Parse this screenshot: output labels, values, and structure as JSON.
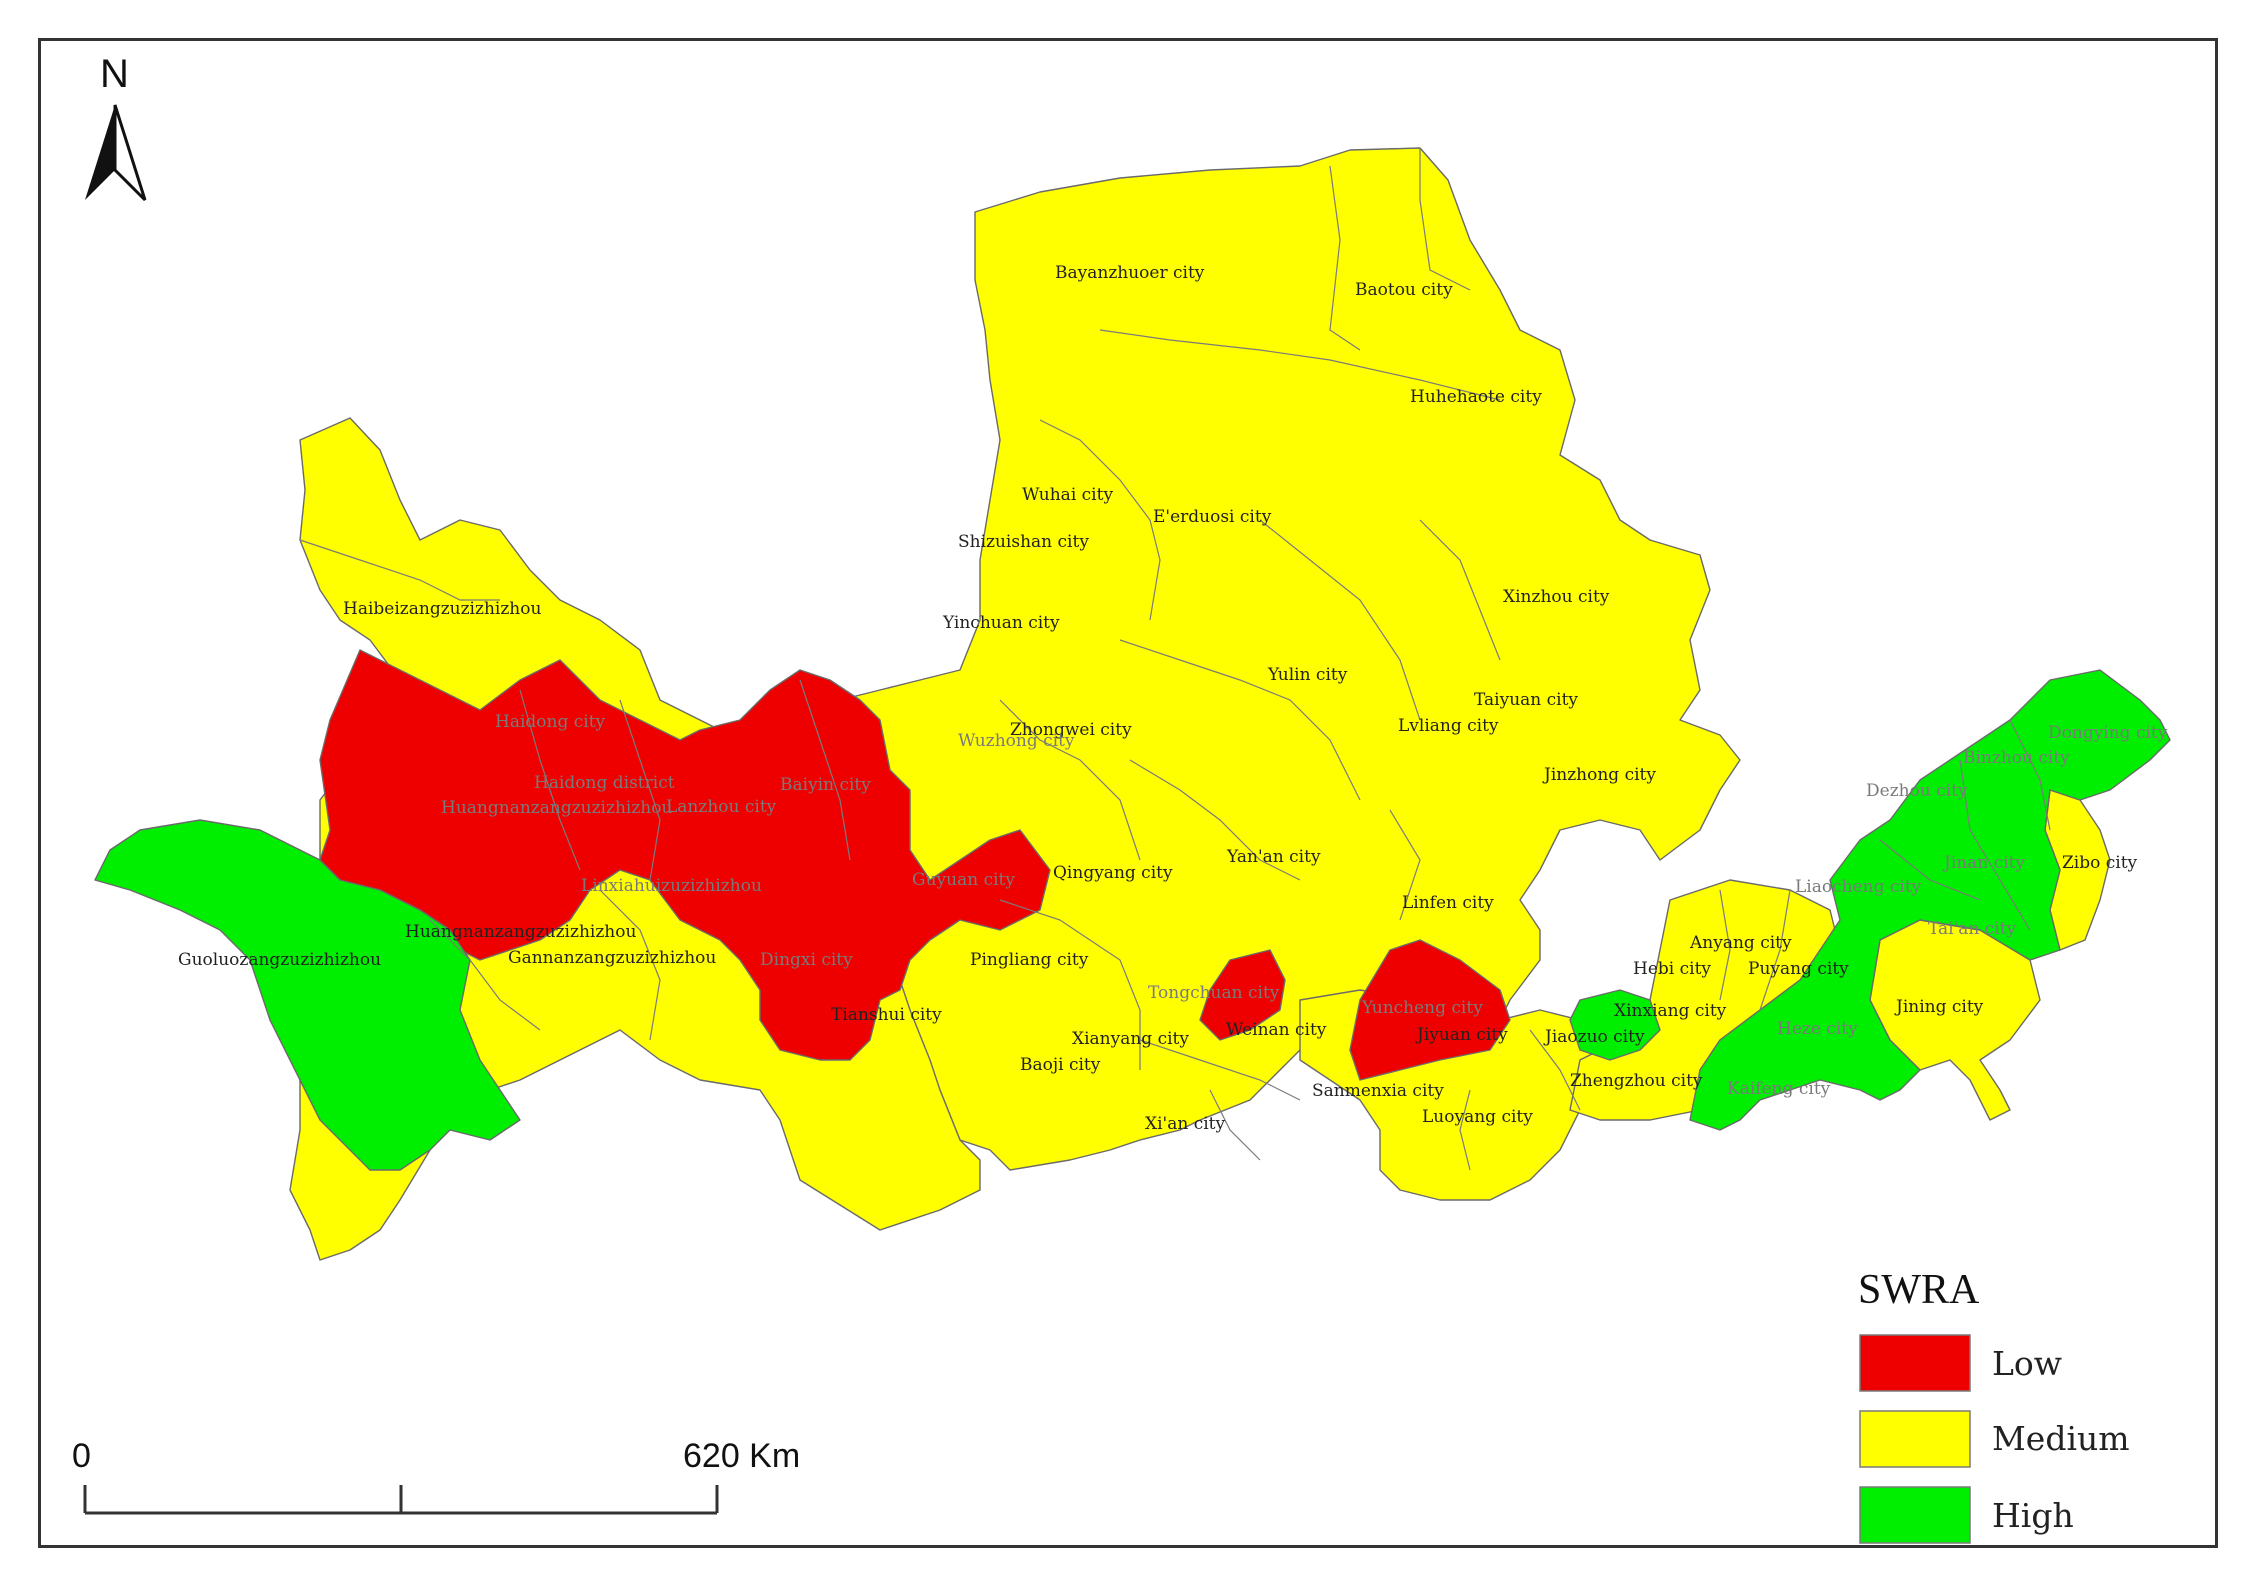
{
  "north_arrow": {
    "label": "N"
  },
  "scale_bar": {
    "start_label": "0",
    "end_label": "620 Km"
  },
  "legend": {
    "title": "SWRA",
    "items": [
      {
        "label": "Low",
        "color": "#ee0000"
      },
      {
        "label": "Medium",
        "color": "#ffff00"
      },
      {
        "label": "High",
        "color": "#00ee00"
      }
    ]
  },
  "region_colors": {
    "low": "#ee0000",
    "medium": "#ffff00",
    "high": "#00ee00"
  },
  "city_labels": [
    "Bayanzhuoer city",
    "Baotou city",
    "Huhehaote city",
    "Wuhai city",
    "E'erduosi city",
    "Shizuishan city",
    "Haibeizangzuzizhizhou",
    "Xinzhou city",
    "Yinchuan city",
    "Yulin city",
    "Taiyuan city",
    "Haidong city",
    "Lvliang city",
    "Zhongwei city",
    "Wuzhong city",
    "Dongying city",
    "Binzhou city",
    "Haidong district",
    "Baiyin city",
    "Lanzhou city",
    "Jinzhong city",
    "Dezhou city",
    "Huangnanzangzuzizhizhou",
    "Yan'an city",
    "Linxiahuizuzizhizhou",
    "Guyuan city",
    "Qingyang city",
    "Jinan city",
    "Zibo city",
    "Liaocheng city",
    "Huangnanzangzuzizhizhou",
    "Linfen city",
    "Tai'an city",
    "Guoluozangzuzizhizhou",
    "Gannanzangzuzizhizhou",
    "Dingxi city",
    "Pingliang city",
    "Anyang city",
    "Hebi city",
    "Puyang city",
    "Tongchuan city",
    "Yuncheng city",
    "Jining city",
    "Tianshui city",
    "Xinxiang city",
    "Weinan city",
    "Jiyuan city",
    "Jiaozuo city",
    "Heze city",
    "Xianyang city",
    "Baoji city",
    "Sanmenxia city",
    "Zhengzhou city",
    "Kaifeng city",
    "Luoyang city",
    "Xi'an city"
  ]
}
